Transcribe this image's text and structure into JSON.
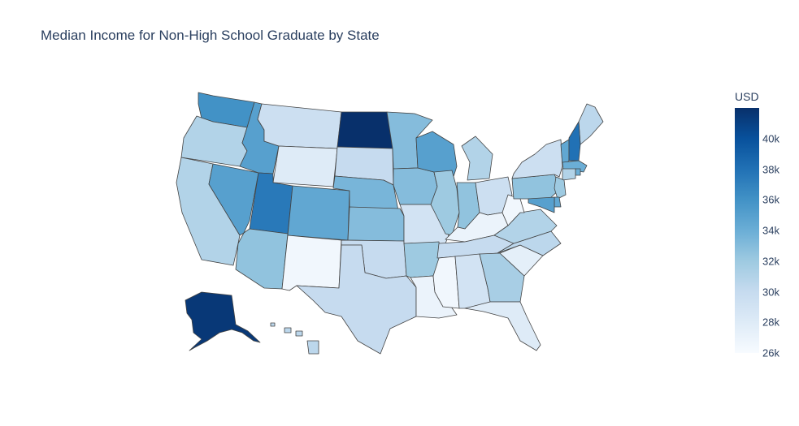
{
  "title": "Median Income for Non-High School Graduate by State",
  "colorbar": {
    "title": "USD",
    "min": 26000,
    "max": 42000,
    "ticks": [
      {
        "value": 40000,
        "label": "40k"
      },
      {
        "value": 38000,
        "label": "38k"
      },
      {
        "value": 36000,
        "label": "36k"
      },
      {
        "value": 34000,
        "label": "34k"
      },
      {
        "value": 32000,
        "label": "32k"
      },
      {
        "value": 30000,
        "label": "30k"
      },
      {
        "value": 28000,
        "label": "28k"
      },
      {
        "value": 26000,
        "label": "26k"
      }
    ],
    "colorscale": [
      "#f7fbff",
      "#deebf7",
      "#c6dbef",
      "#9ecae1",
      "#6baed6",
      "#4292c6",
      "#2171b5",
      "#08519c",
      "#08306b"
    ]
  },
  "chart_data": {
    "type": "choropleth",
    "scope": "usa",
    "value_unit": "USD",
    "states": [
      {
        "code": "WA",
        "value": 36000
      },
      {
        "code": "OR",
        "value": 31000
      },
      {
        "code": "CA",
        "value": 31000
      },
      {
        "code": "NV",
        "value": 35000
      },
      {
        "code": "ID",
        "value": 35000
      },
      {
        "code": "MT",
        "value": 29500
      },
      {
        "code": "WY",
        "value": 28000
      },
      {
        "code": "UT",
        "value": 37500
      },
      {
        "code": "AZ",
        "value": 32500
      },
      {
        "code": "CO",
        "value": 34500
      },
      {
        "code": "NM",
        "value": 26500
      },
      {
        "code": "ND",
        "value": 42000
      },
      {
        "code": "SD",
        "value": 30000
      },
      {
        "code": "NE",
        "value": 33500
      },
      {
        "code": "KS",
        "value": 33000
      },
      {
        "code": "OK",
        "value": 30000
      },
      {
        "code": "TX",
        "value": 30000
      },
      {
        "code": "MN",
        "value": 33000
      },
      {
        "code": "IA",
        "value": 33000
      },
      {
        "code": "MO",
        "value": 29000
      },
      {
        "code": "AR",
        "value": 32000
      },
      {
        "code": "LA",
        "value": 27000
      },
      {
        "code": "WI",
        "value": 35000
      },
      {
        "code": "IL",
        "value": 32000
      },
      {
        "code": "MI",
        "value": 31000
      },
      {
        "code": "IN",
        "value": 32500
      },
      {
        "code": "OH",
        "value": 29500
      },
      {
        "code": "KY",
        "value": 27000
      },
      {
        "code": "TN",
        "value": 30000
      },
      {
        "code": "MS",
        "value": 26500
      },
      {
        "code": "AL",
        "value": 29000
      },
      {
        "code": "GA",
        "value": 31500
      },
      {
        "code": "FL",
        "value": 28000
      },
      {
        "code": "SC",
        "value": 27500
      },
      {
        "code": "NC",
        "value": 30500
      },
      {
        "code": "VA",
        "value": 31000
      },
      {
        "code": "WV",
        "value": 26500
      },
      {
        "code": "PA",
        "value": 32500
      },
      {
        "code": "NY",
        "value": 29500
      },
      {
        "code": "ME",
        "value": 30500
      },
      {
        "code": "VT",
        "value": 34500
      },
      {
        "code": "NH",
        "value": 38000
      },
      {
        "code": "MA",
        "value": 34000
      },
      {
        "code": "RI",
        "value": 34000
      },
      {
        "code": "CT",
        "value": 31000
      },
      {
        "code": "NJ",
        "value": 32000
      },
      {
        "code": "DE",
        "value": 34500
      },
      {
        "code": "MD",
        "value": 35000
      },
      {
        "code": "AK",
        "value": 41500
      },
      {
        "code": "HI",
        "value": 30500
      }
    ]
  }
}
